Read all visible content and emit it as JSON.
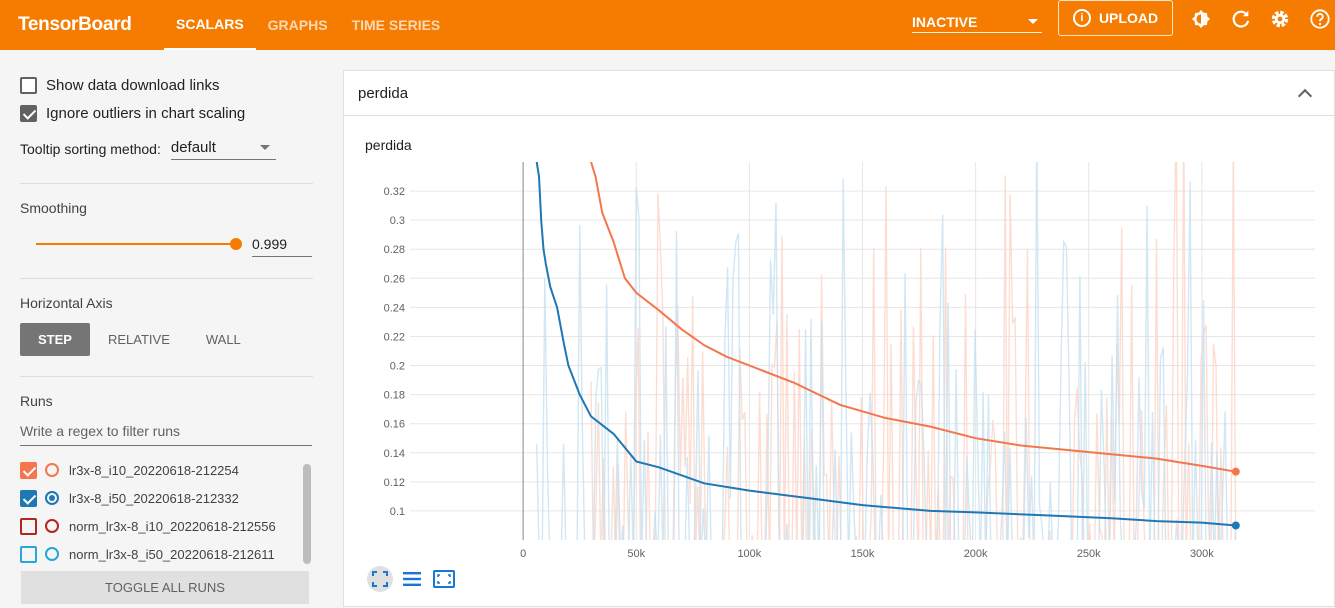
{
  "header": {
    "brand": "TensorBoard",
    "tabs": [
      {
        "label": "SCALARS",
        "active": true
      },
      {
        "label": "GRAPHS",
        "active": false
      },
      {
        "label": "TIME SERIES",
        "active": false
      }
    ],
    "status_select": "INACTIVE",
    "upload_label": "UPLOAD",
    "upload_icon": "i",
    "colors": {
      "accent": "#f57c00"
    }
  },
  "sidebar": {
    "show_download_links": {
      "label": "Show data download links",
      "checked": false
    },
    "ignore_outliers": {
      "label": "Ignore outliers in chart scaling",
      "checked": true
    },
    "tooltip_sort": {
      "label": "Tooltip sorting method:",
      "value": "default"
    },
    "smoothing": {
      "label": "Smoothing",
      "value": "0.999",
      "level": 0.999
    },
    "horizontal_axis": {
      "label": "Horizontal Axis",
      "options": [
        "STEP",
        "RELATIVE",
        "WALL"
      ],
      "selected": "STEP"
    },
    "runs": {
      "label": "Runs",
      "filter_placeholder": "Write a regex to filter runs",
      "items": [
        {
          "name": "lr3x-8_i10_20220618-212254",
          "checked": true,
          "color": "#f4764d"
        },
        {
          "name": "lr3x-8_i50_20220618-212332",
          "checked": true,
          "color": "#1f77b4"
        },
        {
          "name": "norm_lr3x-8_i10_20220618-212556",
          "checked": false,
          "color": "#b3261e"
        },
        {
          "name": "norm_lr3x-8_i50_20220618-212611",
          "checked": false,
          "color": "#26a7d6"
        }
      ],
      "toggle_label": "TOGGLE ALL RUNS"
    }
  },
  "card": {
    "title": "perdida",
    "chart_title": "perdida"
  },
  "chart_data": {
    "type": "line",
    "title": "perdida",
    "xlabel": "",
    "ylabel": "",
    "xlim": [
      -50000,
      350000
    ],
    "ylim": [
      0.08,
      0.34
    ],
    "x_ticks": [
      0,
      50000,
      100000,
      150000,
      200000,
      250000,
      300000
    ],
    "x_tick_labels": [
      "0",
      "50k",
      "100k",
      "150k",
      "200k",
      "250k",
      "300k"
    ],
    "y_ticks": [
      0.1,
      0.12,
      0.14,
      0.16,
      0.18,
      0.2,
      0.22,
      0.24,
      0.26,
      0.28,
      0.3,
      0.32
    ],
    "y_tick_labels": [
      "0.1",
      "0.12",
      "0.14",
      "0.16",
      "0.18",
      "0.2",
      "0.22",
      "0.24",
      "0.26",
      "0.28",
      "0.3",
      "0.32"
    ],
    "grid": true,
    "series": [
      {
        "color": "#f4764d",
        "raw_color": "#fcd5c7",
        "x": [
          30000,
          32000,
          35000,
          40000,
          45000,
          50000,
          60000,
          70000,
          80000,
          90000,
          100000,
          120000,
          140000,
          160000,
          180000,
          200000,
          220000,
          240000,
          260000,
          280000,
          300000,
          315000
        ],
        "y": [
          0.34,
          0.33,
          0.305,
          0.285,
          0.26,
          0.25,
          0.238,
          0.225,
          0.214,
          0.206,
          0.2,
          0.188,
          0.173,
          0.164,
          0.158,
          0.15,
          0.145,
          0.142,
          0.139,
          0.136,
          0.131,
          0.127
        ]
      },
      {
        "color": "#1f77b4",
        "raw_color": "#c6e1f0",
        "x": [
          6000,
          7000,
          8000,
          9000,
          10000,
          12000,
          15000,
          18000,
          20000,
          25000,
          30000,
          40000,
          50000,
          60000,
          80000,
          100000,
          130000,
          150000,
          180000,
          200000,
          230000,
          260000,
          280000,
          300000,
          315000
        ],
        "y": [
          0.34,
          0.33,
          0.3,
          0.28,
          0.27,
          0.254,
          0.24,
          0.215,
          0.2,
          0.18,
          0.165,
          0.153,
          0.134,
          0.13,
          0.119,
          0.114,
          0.108,
          0.104,
          0.1,
          0.099,
          0.097,
          0.095,
          0.093,
          0.092,
          0.09
        ]
      }
    ]
  }
}
